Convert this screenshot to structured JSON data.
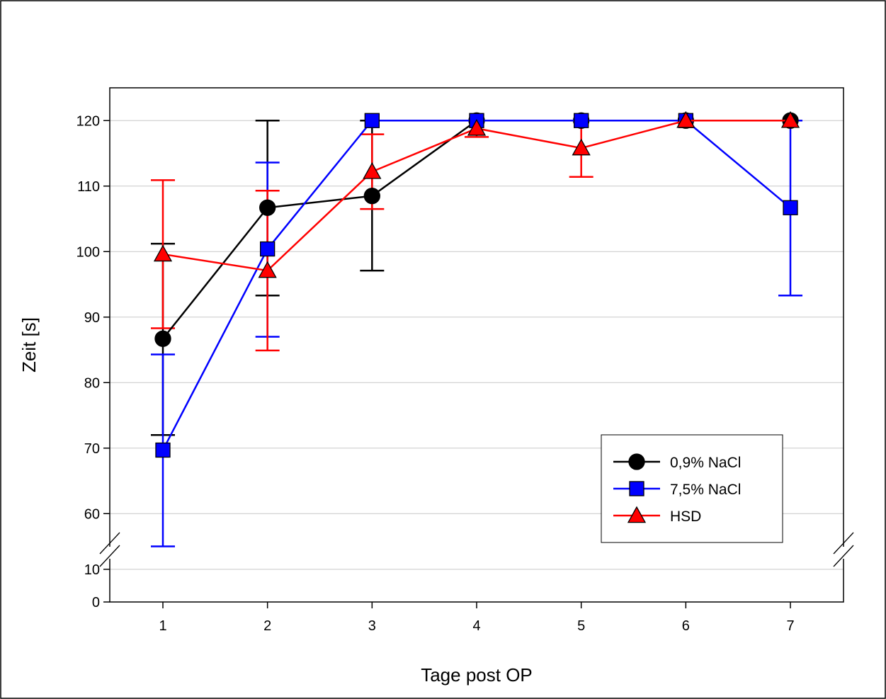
{
  "chart_data": {
    "type": "line",
    "title": "",
    "xlabel": "Tage post OP",
    "ylabel": "Zeit [s]",
    "x": [
      1,
      2,
      3,
      4,
      5,
      6,
      7
    ],
    "x_ticks": [
      "1",
      "2",
      "3",
      "4",
      "5",
      "6",
      "7"
    ],
    "y_ticks_lower": [
      "0",
      "10"
    ],
    "y_ticks_upper": [
      "60",
      "70",
      "80",
      "90",
      "100",
      "110",
      "120"
    ],
    "ylim_lower": [
      0,
      13
    ],
    "ylim_upper": [
      55,
      125
    ],
    "axis_break": true,
    "grid": "horizontal",
    "legend_position": "bottom-right",
    "series": [
      {
        "name": "0,9% NaCl",
        "color": "#000000",
        "marker": "circle",
        "values": [
          86.7,
          106.7,
          108.5,
          120,
          120,
          120,
          120
        ],
        "err_upper": [
          101.2,
          120,
          120,
          120,
          120,
          120,
          120
        ],
        "err_lower": [
          72.0,
          93.3,
          97.1,
          120,
          120,
          120,
          120
        ]
      },
      {
        "name": "7,5% NaCl",
        "color": "#0000ff",
        "marker": "square",
        "values": [
          69.7,
          100.4,
          120,
          120,
          120,
          120,
          106.7
        ],
        "err_upper": [
          84.3,
          113.6,
          120,
          120,
          120,
          120,
          120
        ],
        "err_lower": [
          55.0,
          87.0,
          120,
          120,
          120,
          120,
          93.3
        ]
      },
      {
        "name": "HSD",
        "color": "#ff0000",
        "marker": "triangle",
        "values": [
          99.6,
          97.1,
          112.2,
          118.8,
          115.8,
          120,
          120
        ],
        "err_upper": [
          110.9,
          109.3,
          117.9,
          120,
          120,
          120,
          120
        ],
        "err_lower": [
          88.3,
          84.9,
          106.5,
          117.5,
          111.4,
          120,
          120
        ]
      }
    ]
  }
}
